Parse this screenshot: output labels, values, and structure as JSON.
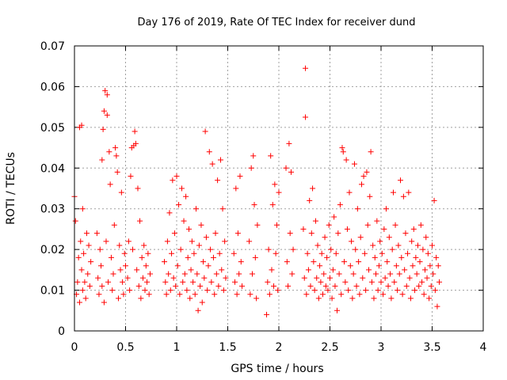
{
  "chart_data": {
    "type": "scatter",
    "title": "Day 176 of 2019, Rate Of TEC Index for receiver dund",
    "xlabel": "GPS time / hours",
    "ylabel": "ROTI / TECUs",
    "xlim": [
      0,
      4
    ],
    "ylim": [
      0,
      0.07
    ],
    "x_ticks": [
      0,
      0.5,
      1,
      1.5,
      2,
      2.5,
      3,
      3.5,
      4
    ],
    "x_tick_labels": [
      "0",
      "0.5",
      "1",
      "1.5",
      "2",
      "2.5",
      "3",
      "3.5",
      "4"
    ],
    "y_ticks": [
      0,
      0.01,
      0.02,
      0.03,
      0.04,
      0.05,
      0.06,
      0.07
    ],
    "y_tick_labels": [
      "0",
      "0.01",
      "0.02",
      "0.03",
      "0.04",
      "0.05",
      "0.06",
      "0.07"
    ],
    "grid": true,
    "marker": "+",
    "series": [
      {
        "name": "ROTI",
        "color": "#ff0000",
        "points": [
          [
            0.0,
            0.033
          ],
          [
            0.01,
            0.027
          ],
          [
            0.02,
            0.009
          ],
          [
            0.03,
            0.012
          ],
          [
            0.04,
            0.018
          ],
          [
            0.05,
            0.007
          ],
          [
            0.05,
            0.05
          ],
          [
            0.06,
            0.022
          ],
          [
            0.07,
            0.015
          ],
          [
            0.07,
            0.0505
          ],
          [
            0.08,
            0.01
          ],
          [
            0.08,
            0.03
          ],
          [
            0.09,
            0.019
          ],
          [
            0.1,
            0.012
          ],
          [
            0.11,
            0.008
          ],
          [
            0.12,
            0.024
          ],
          [
            0.13,
            0.014
          ],
          [
            0.14,
            0.021
          ],
          [
            0.15,
            0.011
          ],
          [
            0.16,
            0.017
          ],
          [
            0.22,
            0.024
          ],
          [
            0.23,
            0.013
          ],
          [
            0.24,
            0.009
          ],
          [
            0.25,
            0.02
          ],
          [
            0.26,
            0.016
          ],
          [
            0.27,
            0.042
          ],
          [
            0.27,
            0.011
          ],
          [
            0.28,
            0.0495
          ],
          [
            0.29,
            0.007
          ],
          [
            0.29,
            0.054
          ],
          [
            0.3,
            0.059
          ],
          [
            0.31,
            0.022
          ],
          [
            0.32,
            0.058
          ],
          [
            0.32,
            0.053
          ],
          [
            0.33,
            0.012
          ],
          [
            0.34,
            0.044
          ],
          [
            0.35,
            0.036
          ],
          [
            0.36,
            0.018
          ],
          [
            0.37,
            0.01
          ],
          [
            0.38,
            0.014
          ],
          [
            0.39,
            0.026
          ],
          [
            0.4,
            0.045
          ],
          [
            0.41,
            0.043
          ],
          [
            0.42,
            0.039
          ],
          [
            0.43,
            0.008
          ],
          [
            0.44,
            0.021
          ],
          [
            0.45,
            0.015
          ],
          [
            0.46,
            0.034
          ],
          [
            0.47,
            0.012
          ],
          [
            0.48,
            0.009
          ],
          [
            0.49,
            0.019
          ],
          [
            0.5,
            0.016
          ],
          [
            0.52,
            0.013
          ],
          [
            0.53,
            0.022
          ],
          [
            0.54,
            0.01
          ],
          [
            0.55,
            0.038
          ],
          [
            0.56,
            0.045
          ],
          [
            0.57,
            0.02
          ],
          [
            0.58,
            0.0455
          ],
          [
            0.59,
            0.049
          ],
          [
            0.6,
            0.046
          ],
          [
            0.61,
            0.015
          ],
          [
            0.62,
            0.035
          ],
          [
            0.63,
            0.011
          ],
          [
            0.64,
            0.027
          ],
          [
            0.65,
            0.008
          ],
          [
            0.66,
            0.018
          ],
          [
            0.67,
            0.013
          ],
          [
            0.68,
            0.021
          ],
          [
            0.69,
            0.01
          ],
          [
            0.7,
            0.016
          ],
          [
            0.71,
            0.012
          ],
          [
            0.72,
            0.019
          ],
          [
            0.73,
            0.009
          ],
          [
            0.74,
            0.014
          ],
          [
            0.88,
            0.017
          ],
          [
            0.89,
            0.012
          ],
          [
            0.9,
            0.009
          ],
          [
            0.91,
            0.022
          ],
          [
            0.92,
            0.014
          ],
          [
            0.93,
            0.029
          ],
          [
            0.94,
            0.01
          ],
          [
            0.95,
            0.019
          ],
          [
            0.96,
            0.037
          ],
          [
            0.97,
            0.013
          ],
          [
            0.98,
            0.024
          ],
          [
            0.99,
            0.011
          ],
          [
            1.0,
            0.038
          ],
          [
            1.01,
            0.016
          ],
          [
            1.02,
            0.031
          ],
          [
            1.03,
            0.009
          ],
          [
            1.04,
            0.02
          ],
          [
            1.05,
            0.035
          ],
          [
            1.06,
            0.012
          ],
          [
            1.07,
            0.027
          ],
          [
            1.08,
            0.014
          ],
          [
            1.09,
            0.033
          ],
          [
            1.1,
            0.01
          ],
          [
            1.11,
            0.018
          ],
          [
            1.12,
            0.025
          ],
          [
            1.13,
            0.008
          ],
          [
            1.14,
            0.015
          ],
          [
            1.15,
            0.022
          ],
          [
            1.16,
            0.012
          ],
          [
            1.17,
            0.019
          ],
          [
            1.18,
            0.009
          ],
          [
            1.19,
            0.03
          ],
          [
            1.2,
            0.014
          ],
          [
            1.21,
            0.005
          ],
          [
            1.22,
            0.021
          ],
          [
            1.23,
            0.011
          ],
          [
            1.24,
            0.026
          ],
          [
            1.25,
            0.007
          ],
          [
            1.26,
            0.017
          ],
          [
            1.27,
            0.013
          ],
          [
            1.28,
            0.049
          ],
          [
            1.29,
            0.023
          ],
          [
            1.3,
            0.01
          ],
          [
            1.31,
            0.016
          ],
          [
            1.32,
            0.044
          ],
          [
            1.33,
            0.02
          ],
          [
            1.34,
            0.012
          ],
          [
            1.35,
            0.041
          ],
          [
            1.36,
            0.018
          ],
          [
            1.37,
            0.009
          ],
          [
            1.38,
            0.024
          ],
          [
            1.39,
            0.014
          ],
          [
            1.4,
            0.037
          ],
          [
            1.41,
            0.011
          ],
          [
            1.42,
            0.019
          ],
          [
            1.43,
            0.042
          ],
          [
            1.44,
            0.015
          ],
          [
            1.45,
            0.03
          ],
          [
            1.46,
            0.01
          ],
          [
            1.47,
            0.022
          ],
          [
            1.48,
            0.013
          ],
          [
            1.56,
            0.019
          ],
          [
            1.57,
            0.012
          ],
          [
            1.58,
            0.035
          ],
          [
            1.59,
            0.009
          ],
          [
            1.6,
            0.024
          ],
          [
            1.61,
            0.014
          ],
          [
            1.62,
            0.038
          ],
          [
            1.63,
            0.017
          ],
          [
            1.64,
            0.011
          ],
          [
            1.71,
            0.022
          ],
          [
            1.72,
            0.009
          ],
          [
            1.73,
            0.04
          ],
          [
            1.74,
            0.014
          ],
          [
            1.75,
            0.043
          ],
          [
            1.76,
            0.031
          ],
          [
            1.77,
            0.018
          ],
          [
            1.78,
            0.008
          ],
          [
            1.79,
            0.026
          ],
          [
            1.88,
            0.004
          ],
          [
            1.89,
            0.012
          ],
          [
            1.9,
            0.02
          ],
          [
            1.91,
            0.009
          ],
          [
            1.92,
            0.043
          ],
          [
            1.93,
            0.015
          ],
          [
            1.94,
            0.031
          ],
          [
            1.95,
            0.011
          ],
          [
            1.96,
            0.036
          ],
          [
            1.97,
            0.019
          ],
          [
            1.98,
            0.026
          ],
          [
            1.99,
            0.01
          ],
          [
            2.0,
            0.034
          ],
          [
            2.07,
            0.04
          ],
          [
            2.08,
            0.017
          ],
          [
            2.09,
            0.011
          ],
          [
            2.1,
            0.046
          ],
          [
            2.11,
            0.024
          ],
          [
            2.12,
            0.039
          ],
          [
            2.13,
            0.014
          ],
          [
            2.14,
            0.02
          ],
          [
            2.24,
            0.025
          ],
          [
            2.25,
            0.013
          ],
          [
            2.26,
            0.0645
          ],
          [
            2.26,
            0.0525
          ],
          [
            2.27,
            0.009
          ],
          [
            2.28,
            0.019
          ],
          [
            2.29,
            0.015
          ],
          [
            2.3,
            0.032
          ],
          [
            2.31,
            0.011
          ],
          [
            2.32,
            0.024
          ],
          [
            2.33,
            0.035
          ],
          [
            2.34,
            0.017
          ],
          [
            2.35,
            0.01
          ],
          [
            2.36,
            0.027
          ],
          [
            2.37,
            0.013
          ],
          [
            2.38,
            0.021
          ],
          [
            2.39,
            0.008
          ],
          [
            2.4,
            0.016
          ],
          [
            2.41,
            0.012
          ],
          [
            2.42,
            0.019
          ],
          [
            2.43,
            0.009
          ],
          [
            2.44,
            0.014
          ],
          [
            2.45,
            0.023
          ],
          [
            2.46,
            0.011
          ],
          [
            2.47,
            0.018
          ],
          [
            2.48,
            0.01
          ],
          [
            2.49,
            0.026
          ],
          [
            2.5,
            0.013
          ],
          [
            2.51,
            0.02
          ],
          [
            2.52,
            0.008
          ],
          [
            2.53,
            0.015
          ],
          [
            2.54,
            0.028
          ],
          [
            2.55,
            0.011
          ],
          [
            2.56,
            0.019
          ],
          [
            2.57,
            0.005
          ],
          [
            2.58,
            0.024
          ],
          [
            2.59,
            0.014
          ],
          [
            2.6,
            0.031
          ],
          [
            2.61,
            0.009
          ],
          [
            2.62,
            0.045
          ],
          [
            2.63,
            0.044
          ],
          [
            2.64,
            0.017
          ],
          [
            2.65,
            0.012
          ],
          [
            2.66,
            0.042
          ],
          [
            2.67,
            0.025
          ],
          [
            2.68,
            0.01
          ],
          [
            2.69,
            0.034
          ],
          [
            2.7,
            0.016
          ],
          [
            2.71,
            0.022
          ],
          [
            2.72,
            0.008
          ],
          [
            2.73,
            0.014
          ],
          [
            2.74,
            0.041
          ],
          [
            2.75,
            0.02
          ],
          [
            2.76,
            0.011
          ],
          [
            2.77,
            0.03
          ],
          [
            2.78,
            0.017
          ],
          [
            2.79,
            0.009
          ],
          [
            2.8,
            0.023
          ],
          [
            2.81,
            0.036
          ],
          [
            2.82,
            0.013
          ],
          [
            2.83,
            0.038
          ],
          [
            2.84,
            0.019
          ],
          [
            2.85,
            0.01
          ],
          [
            2.86,
            0.039
          ],
          [
            2.87,
            0.026
          ],
          [
            2.88,
            0.015
          ],
          [
            2.89,
            0.033
          ],
          [
            2.9,
            0.044
          ],
          [
            2.91,
            0.012
          ],
          [
            2.92,
            0.021
          ],
          [
            2.93,
            0.008
          ],
          [
            2.94,
            0.018
          ],
          [
            2.95,
            0.014
          ],
          [
            2.96,
            0.027
          ],
          [
            2.97,
            0.01
          ],
          [
            2.98,
            0.016
          ],
          [
            2.99,
            0.022
          ],
          [
            3.0,
            0.012
          ],
          [
            3.01,
            0.019
          ],
          [
            3.02,
            0.009
          ],
          [
            3.03,
            0.025
          ],
          [
            3.04,
            0.013
          ],
          [
            3.05,
            0.03
          ],
          [
            3.06,
            0.017
          ],
          [
            3.07,
            0.011
          ],
          [
            3.08,
            0.023
          ],
          [
            3.09,
            0.014
          ],
          [
            3.1,
            0.008
          ],
          [
            3.11,
            0.02
          ],
          [
            3.12,
            0.034
          ],
          [
            3.13,
            0.012
          ],
          [
            3.14,
            0.026
          ],
          [
            3.15,
            0.016
          ],
          [
            3.16,
            0.01
          ],
          [
            3.17,
            0.021
          ],
          [
            3.18,
            0.014
          ],
          [
            3.19,
            0.037
          ],
          [
            3.2,
            0.018
          ],
          [
            3.21,
            0.009
          ],
          [
            3.22,
            0.033
          ],
          [
            3.23,
            0.015
          ],
          [
            3.24,
            0.024
          ],
          [
            3.25,
            0.011
          ],
          [
            3.26,
            0.019
          ],
          [
            3.27,
            0.034
          ],
          [
            3.28,
            0.013
          ],
          [
            3.29,
            0.008
          ],
          [
            3.3,
            0.022
          ],
          [
            3.31,
            0.016
          ],
          [
            3.32,
            0.025
          ],
          [
            3.33,
            0.01
          ],
          [
            3.34,
            0.018
          ],
          [
            3.35,
            0.014
          ],
          [
            3.36,
            0.021
          ],
          [
            3.37,
            0.011
          ],
          [
            3.38,
            0.017
          ],
          [
            3.39,
            0.026
          ],
          [
            3.4,
            0.012
          ],
          [
            3.41,
            0.02
          ],
          [
            3.42,
            0.009
          ],
          [
            3.43,
            0.015
          ],
          [
            3.44,
            0.023
          ],
          [
            3.45,
            0.013
          ],
          [
            3.46,
            0.019
          ],
          [
            3.47,
            0.008
          ],
          [
            3.48,
            0.016
          ],
          [
            3.49,
            0.011
          ],
          [
            3.5,
            0.021
          ],
          [
            3.51,
            0.014
          ],
          [
            3.52,
            0.032
          ],
          [
            3.53,
            0.01
          ],
          [
            3.54,
            0.018
          ],
          [
            3.55,
            0.006
          ],
          [
            3.56,
            0.016
          ],
          [
            3.57,
            0.012
          ]
        ]
      }
    ]
  }
}
